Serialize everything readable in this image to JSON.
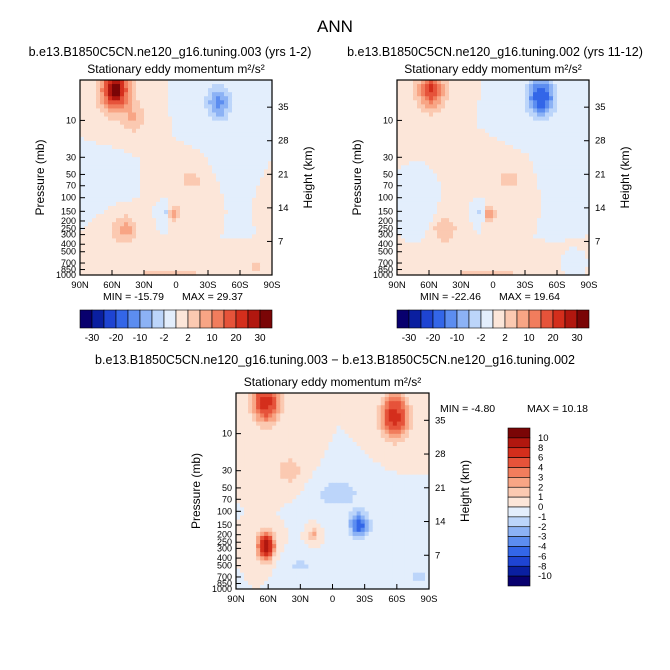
{
  "figure": {
    "title": "ANN"
  },
  "colors": {
    "text": "#000000",
    "frame": "#000000"
  },
  "chart_data": [
    {
      "type": "heatmap",
      "case_title": "b.e13.B1850C5CN.ne120_g16.tuning.003 (yrs 1-2)",
      "plot_title": "Stationary eddy momentum",
      "units": "m²/s²",
      "xlabel": "",
      "ylabel": "Pressure (mb)",
      "ylabel_right": "Height (km)",
      "x_ticks": [
        "90N",
        "60N",
        "30N",
        "0",
        "30S",
        "60S",
        "90S"
      ],
      "y_ticks": [
        "10",
        "30",
        "50",
        "70",
        "100",
        "150",
        "200",
        "250",
        "300",
        "400",
        "500",
        "700",
        "850",
        "1000"
      ],
      "y_ticks_right": [
        "35",
        "28",
        "21",
        "14",
        "7"
      ],
      "min_label": "MIN = -15.79",
      "max_label": "MAX = 29.37",
      "min": -15.79,
      "max": 29.37,
      "levels": [
        "-30",
        "-20",
        "-10",
        "-2",
        "2",
        "10",
        "20",
        "30"
      ],
      "palette": [
        "#08006e",
        "#0a1fa0",
        "#1e44d2",
        "#3366e8",
        "#5c8df0",
        "#8cb2f5",
        "#bcd5fa",
        "#e3eefc",
        "#fce6d9",
        "#fbc9b1",
        "#f8a585",
        "#f17d5d",
        "#e6533a",
        "#d42e1c",
        "#b1170f",
        "#7a0506"
      ],
      "features": [
        {
          "lat": 57,
          "p": 4,
          "amp": 29,
          "wlat": 12,
          "wlog": 0.55
        },
        {
          "lat": 40,
          "p": 9,
          "amp": 6,
          "wlat": 10,
          "wlog": 0.4
        },
        {
          "lat": 48,
          "p": 260,
          "amp": 8,
          "wlat": 10,
          "wlog": 0.35
        },
        {
          "lat": 2,
          "p": 160,
          "amp": 9,
          "wlat": 5,
          "wlog": 0.2
        },
        {
          "lat": -40,
          "p": 6,
          "amp": -15,
          "wlat": 13,
          "wlog": 0.6
        },
        {
          "lat": -48,
          "p": 35,
          "amp": -5,
          "wlat": 10,
          "wlog": 0.5
        },
        {
          "lat": 10,
          "p": 150,
          "amp": -8,
          "wlat": 4,
          "wlog": 0.2
        },
        {
          "lat": 5,
          "p": 1000,
          "amp": 3,
          "wlat": 40,
          "wlog": 0.25
        },
        {
          "lat": -75,
          "p": 800,
          "amp": 5,
          "wlat": 5,
          "wlog": 0.15
        },
        {
          "lat": 70,
          "p": 60,
          "amp": -2.5,
          "wlat": 15,
          "wlog": 0.4
        },
        {
          "lat": -15,
          "p": 60,
          "amp": 2.5,
          "wlat": 20,
          "wlog": 0.4
        }
      ]
    },
    {
      "type": "heatmap",
      "case_title": "b.e13.B1850C5CN.ne120_g16.tuning.002 (yrs 11-12)",
      "plot_title": "Stationary eddy momentum",
      "units": "m²/s²",
      "xlabel": "",
      "ylabel": "Pressure (mb)",
      "ylabel_right": "Height (km)",
      "x_ticks": [
        "90N",
        "60N",
        "30N",
        "0",
        "30S",
        "60S",
        "90S"
      ],
      "y_ticks": [
        "10",
        "30",
        "50",
        "70",
        "100",
        "150",
        "200",
        "250",
        "300",
        "400",
        "500",
        "700",
        "850",
        "1000"
      ],
      "y_ticks_right": [
        "35",
        "28",
        "21",
        "14",
        "7"
      ],
      "min_label": "MIN = -22.46",
      "max_label": "MAX = 19.64",
      "min": -22.46,
      "max": 19.64,
      "levels": [
        "-30",
        "-20",
        "-10",
        "-2",
        "2",
        "10",
        "20",
        "30"
      ],
      "palette": [
        "#08006e",
        "#0a1fa0",
        "#1e44d2",
        "#3366e8",
        "#5c8df0",
        "#8cb2f5",
        "#bcd5fa",
        "#e3eefc",
        "#fce6d9",
        "#fbc9b1",
        "#f8a585",
        "#f17d5d",
        "#e6533a",
        "#d42e1c",
        "#b1170f",
        "#7a0506"
      ],
      "features": [
        {
          "lat": 58,
          "p": 4,
          "amp": 19,
          "wlat": 11,
          "wlog": 0.5
        },
        {
          "lat": 45,
          "p": 260,
          "amp": 5,
          "wlat": 10,
          "wlog": 0.35
        },
        {
          "lat": 3,
          "p": 160,
          "amp": 10,
          "wlat": 5,
          "wlog": 0.2
        },
        {
          "lat": -45,
          "p": 5,
          "amp": -22,
          "wlat": 14,
          "wlog": 0.65
        },
        {
          "lat": -55,
          "p": 40,
          "amp": -6,
          "wlat": 10,
          "wlog": 0.5
        },
        {
          "lat": 12,
          "p": 150,
          "amp": -8,
          "wlat": 4,
          "wlog": 0.2
        },
        {
          "lat": 65,
          "p": 150,
          "amp": -5,
          "wlat": 6,
          "wlog": 0.35
        },
        {
          "lat": 5,
          "p": 1000,
          "amp": 3,
          "wlat": 40,
          "wlog": 0.25
        },
        {
          "lat": -75,
          "p": 800,
          "amp": -6,
          "wlat": 5,
          "wlog": 0.15
        },
        {
          "lat": -15,
          "p": 60,
          "amp": 2.5,
          "wlat": 20,
          "wlog": 0.4
        }
      ]
    },
    {
      "type": "heatmap",
      "case_title": "b.e13.B1850C5CN.ne120_g16.tuning.003 − b.e13.B1850C5CN.ne120_g16.tuning.002",
      "plot_title": "Stationary eddy momentum",
      "units": "m²/s²",
      "xlabel": "",
      "ylabel": "Pressure (mb)",
      "ylabel_right": "Height (km)",
      "x_ticks": [
        "90N",
        "60N",
        "30N",
        "0",
        "30S",
        "60S",
        "90S"
      ],
      "y_ticks": [
        "10",
        "30",
        "50",
        "70",
        "100",
        "150",
        "200",
        "250",
        "300",
        "400",
        "500",
        "700",
        "850",
        "1000"
      ],
      "y_ticks_right": [
        "35",
        "28",
        "21",
        "14",
        "7"
      ],
      "min_label": "MIN = -4.80",
      "max_label": "MAX = 10.18",
      "min": -4.8,
      "max": 10.18,
      "levels": [
        "10",
        "8",
        "6",
        "4",
        "3",
        "2",
        "1",
        "0",
        "-1",
        "-2",
        "-3",
        "-4",
        "-6",
        "-8",
        "-10"
      ],
      "level_values": [
        -10,
        -8,
        -6,
        -4,
        -3,
        -2,
        -1,
        0,
        1,
        2,
        3,
        4,
        6,
        8,
        10
      ],
      "palette": [
        "#08006e",
        "#0a1fa0",
        "#1e44d2",
        "#3366e8",
        "#5c8df0",
        "#8cb2f5",
        "#bcd5fa",
        "#e3eefc",
        "#fce6d9",
        "#fbc9b1",
        "#f8a585",
        "#f17d5d",
        "#e6533a",
        "#d42e1c",
        "#b1170f",
        "#7a0506"
      ],
      "features": [
        {
          "lat": 62,
          "p": 4,
          "amp": 7,
          "wlat": 12,
          "wlog": 0.55
        },
        {
          "lat": 62,
          "p": 280,
          "amp": 10,
          "wlat": 7,
          "wlog": 0.35
        },
        {
          "lat": 18,
          "p": 200,
          "amp": 2.5,
          "wlat": 4,
          "wlog": 0.2
        },
        {
          "lat": -58,
          "p": 6,
          "amp": 7,
          "wlat": 12,
          "wlog": 0.6
        },
        {
          "lat": -25,
          "p": 150,
          "amp": -4.8,
          "wlat": 9,
          "wlog": 0.35
        },
        {
          "lat": -5,
          "p": 60,
          "amp": -1.5,
          "wlat": 25,
          "wlog": 0.5
        },
        {
          "lat": -80,
          "p": 700,
          "amp": -1.5,
          "wlat": 10,
          "wlog": 0.25
        },
        {
          "lat": 30,
          "p": 500,
          "amp": -1.2,
          "wlat": 15,
          "wlog": 0.3
        },
        {
          "lat": 40,
          "p": 30,
          "amp": 1.5,
          "wlat": 15,
          "wlog": 0.5
        }
      ]
    }
  ]
}
